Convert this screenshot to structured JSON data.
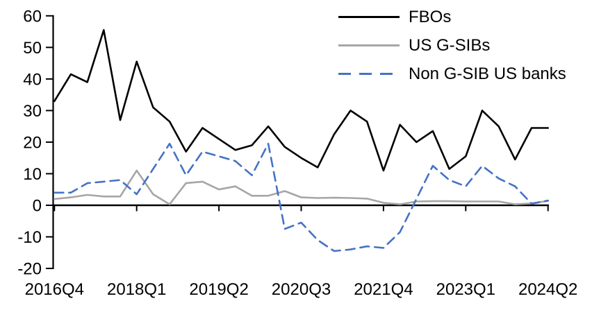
{
  "chart_data": {
    "type": "line",
    "title": "",
    "background": "#ffffff",
    "axis_color": "#000000",
    "grid": false,
    "legend_position": "top-right",
    "ylim": [
      -20,
      60
    ],
    "y_ticks": [
      60,
      50,
      40,
      30,
      20,
      10,
      0,
      -10,
      -20
    ],
    "x_categories": [
      "2016Q4",
      "2017Q1",
      "2017Q2",
      "2017Q3",
      "2017Q4",
      "2018Q1",
      "2018Q2",
      "2018Q3",
      "2018Q4",
      "2019Q1",
      "2019Q2",
      "2019Q3",
      "2019Q4",
      "2020Q1",
      "2020Q2",
      "2020Q3",
      "2020Q4",
      "2021Q1",
      "2021Q2",
      "2021Q3",
      "2021Q4",
      "2022Q1",
      "2022Q2",
      "2022Q3",
      "2022Q4",
      "2023Q1",
      "2023Q2",
      "2023Q3",
      "2023Q4",
      "2024Q1",
      "2024Q2"
    ],
    "x_tick_labels": [
      "2016Q4",
      "2018Q1",
      "2019Q2",
      "2020Q3",
      "2021Q4",
      "2023Q1",
      "2024Q2"
    ],
    "x_tick_indices": [
      0,
      5,
      10,
      15,
      20,
      25,
      30
    ],
    "series": [
      {
        "name": "FBOs",
        "color": "#000000",
        "style": "solid",
        "values": [
          33,
          41.5,
          39,
          55.5,
          27,
          45.5,
          31,
          26.5,
          17,
          24.5,
          21,
          17.5,
          19,
          25,
          18.5,
          15,
          12,
          22.5,
          30,
          26.5,
          11,
          25.5,
          20,
          23.5,
          11.5,
          15.5,
          30,
          25,
          14.5,
          24.5,
          24.5
        ]
      },
      {
        "name": "US G-SIBs",
        "color": "#a6a6a6",
        "style": "solid",
        "values": [
          2,
          2.5,
          3.3,
          2.8,
          2.8,
          11,
          3.5,
          0.3,
          7,
          7.5,
          5,
          6,
          3,
          3,
          4.5,
          2.5,
          2.3,
          2.4,
          2.3,
          2.1,
          0.8,
          0.3,
          1.2,
          1.3,
          1.3,
          1.2,
          1.2,
          1.2,
          0.3,
          0.6,
          1.4
        ]
      },
      {
        "name": "Non G-SIB US banks",
        "color": "#4472c4",
        "style": "dashed",
        "values": [
          4,
          4,
          7,
          7.5,
          8,
          3.5,
          11.5,
          19.5,
          9.5,
          17,
          15.5,
          14,
          9.5,
          19.5,
          -7.5,
          -5.5,
          -11,
          -14.5,
          -14,
          -13,
          -13.5,
          -8.5,
          2,
          12.5,
          8,
          6,
          12.5,
          8.5,
          6,
          0.5,
          1.5
        ]
      }
    ]
  }
}
